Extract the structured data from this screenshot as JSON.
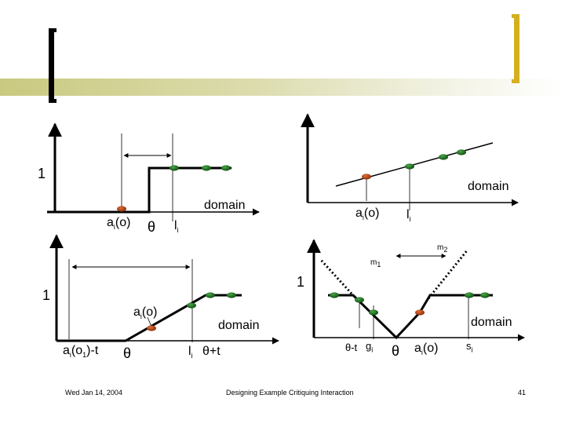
{
  "slide": {
    "footer_date": "Wed Jan 14, 2004",
    "footer_title": "Designing Example Critiquing Interaction",
    "page_number": "41"
  },
  "panel_top_left": {
    "y_one": "1",
    "domain": "domain",
    "ai_o": "a",
    "ai_o_sub": "i",
    "ai_o_rest": "(o)",
    "theta": "θ",
    "li": "l",
    "li_sub": "i"
  },
  "panel_top_right": {
    "domain": "domain",
    "ai_o": "a",
    "ai_o_sub": "i",
    "ai_o_rest": "(o)",
    "li": "l",
    "li_sub": "i"
  },
  "panel_bottom_left": {
    "y_one": "1",
    "ai_o": "a",
    "ai_o_sub": "i",
    "ai_o_rest": "(o)",
    "domain": "domain",
    "ai_o1_t": "a",
    "ai_o1_t_sub": "i",
    "ai_o1_t_rest1": "(o",
    "ai_o1_t_sub2": "1",
    "ai_o1_t_rest2": ")-t",
    "theta": "θ",
    "li": "l",
    "li_sub": "i",
    "theta_plus_t": "θ+t"
  },
  "panel_bottom_right": {
    "y_one": "1",
    "m1": "m",
    "m1_sub": "1",
    "m2": "m",
    "m2_sub": "2",
    "domain": "domain",
    "theta_minus_t": "θ-t",
    "gi": "g",
    "gi_sub": "i",
    "theta": "θ",
    "ai_o": "a",
    "ai_o_sub": "i",
    "ai_o_rest": "(o)",
    "si": "s",
    "si_sub": "i"
  },
  "colors": {
    "accent_bar": "#c9c980",
    "bracket": "#d4b020",
    "option_green": "#1f6b1f",
    "option_red": "#b04010",
    "line": "#000000"
  }
}
